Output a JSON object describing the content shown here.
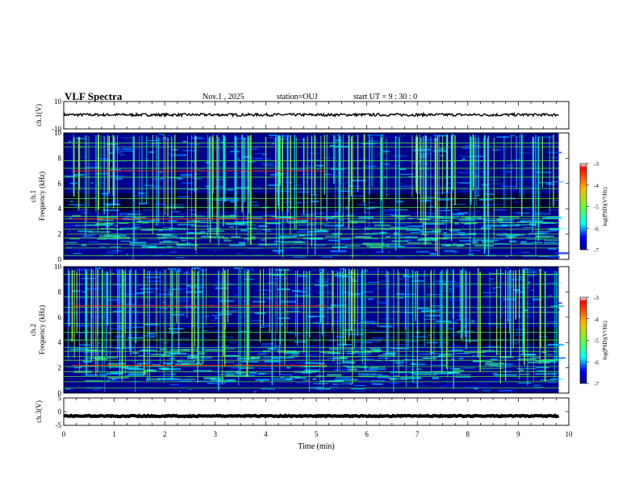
{
  "header": {
    "title": "VLF Spectra",
    "date": "Nov.1 , 2025",
    "station": "station=OUJ",
    "start": "start UT = 9 : 30 : 0"
  },
  "colors": {
    "spectrogram_base": "#00008b",
    "band_green": "#66ff33",
    "band_red": "#ff3300",
    "trace": "#000000"
  },
  "chart_data": [
    {
      "type": "line",
      "name": "ch1-waveform",
      "ylabel": "ch.1(V)",
      "ylim": [
        -10,
        10
      ],
      "yticks": [
        "10",
        "-10"
      ],
      "xlim": [
        0,
        9.8
      ],
      "series": [
        {
          "name": "ch.1",
          "mean": 0.3,
          "amplitude": 1.0
        }
      ]
    },
    {
      "type": "heatmap",
      "name": "ch1-spectrogram",
      "ylabel": [
        "ch.1",
        "Frequency (kHz)"
      ],
      "ylim": [
        0,
        10
      ],
      "yticks": [
        "0",
        "2",
        "4",
        "6",
        "8",
        "10"
      ],
      "xlim": [
        0,
        9.8
      ],
      "colorbar": {
        "label": "log(PSD)(V²/Hz)",
        "range": [
          -7,
          -3
        ],
        "ticks": [
          "-3",
          "-4",
          "-5",
          "-6",
          "-7"
        ]
      },
      "bands_khz": [
        0.3,
        0.9,
        1.2,
        1.7,
        2.0,
        2.4,
        2.9,
        3.2,
        3.4,
        4.1,
        4.8,
        5.6,
        6.5,
        7.2,
        7.8,
        8.9,
        9.2
      ],
      "red_bands_khz": [
        3.2,
        7.0
      ]
    },
    {
      "type": "heatmap",
      "name": "ch2-spectrogram",
      "ylabel": [
        "ch.2",
        "Frequency (kHz)"
      ],
      "ylim": [
        0,
        10
      ],
      "yticks": [
        "0",
        "2",
        "4",
        "6",
        "8",
        "10"
      ],
      "xlim": [
        0,
        9.8
      ],
      "colorbar": {
        "label": "log(PSD)(V²/Hz)",
        "range": [
          -7,
          -3
        ],
        "ticks": [
          "-3",
          "-4",
          "-5",
          "-6",
          "-7"
        ]
      },
      "bands_khz": [
        0.4,
        0.9,
        1.3,
        1.7,
        2.1,
        2.6,
        2.9,
        3.3,
        3.6,
        4.2,
        4.8,
        5.5,
        6.4,
        6.8,
        7.6,
        8.6,
        9.4
      ],
      "red_bands_khz": [
        2.2,
        6.9
      ]
    },
    {
      "type": "line",
      "name": "ch3-waveform",
      "ylabel": "ch.3(V)",
      "ylim": [
        -5,
        5
      ],
      "yticks": [
        "5",
        "0",
        "-5"
      ],
      "xlim": [
        0,
        9.8
      ],
      "series": [
        {
          "name": "ch.3",
          "mean": -1.6,
          "amplitude": 0.2
        }
      ]
    }
  ],
  "xaxis": {
    "label": "Time (min)",
    "range": [
      0,
      10
    ],
    "ticks": [
      "0",
      "1",
      "2",
      "3",
      "4",
      "5",
      "6",
      "7",
      "8",
      "9",
      "10"
    ]
  }
}
